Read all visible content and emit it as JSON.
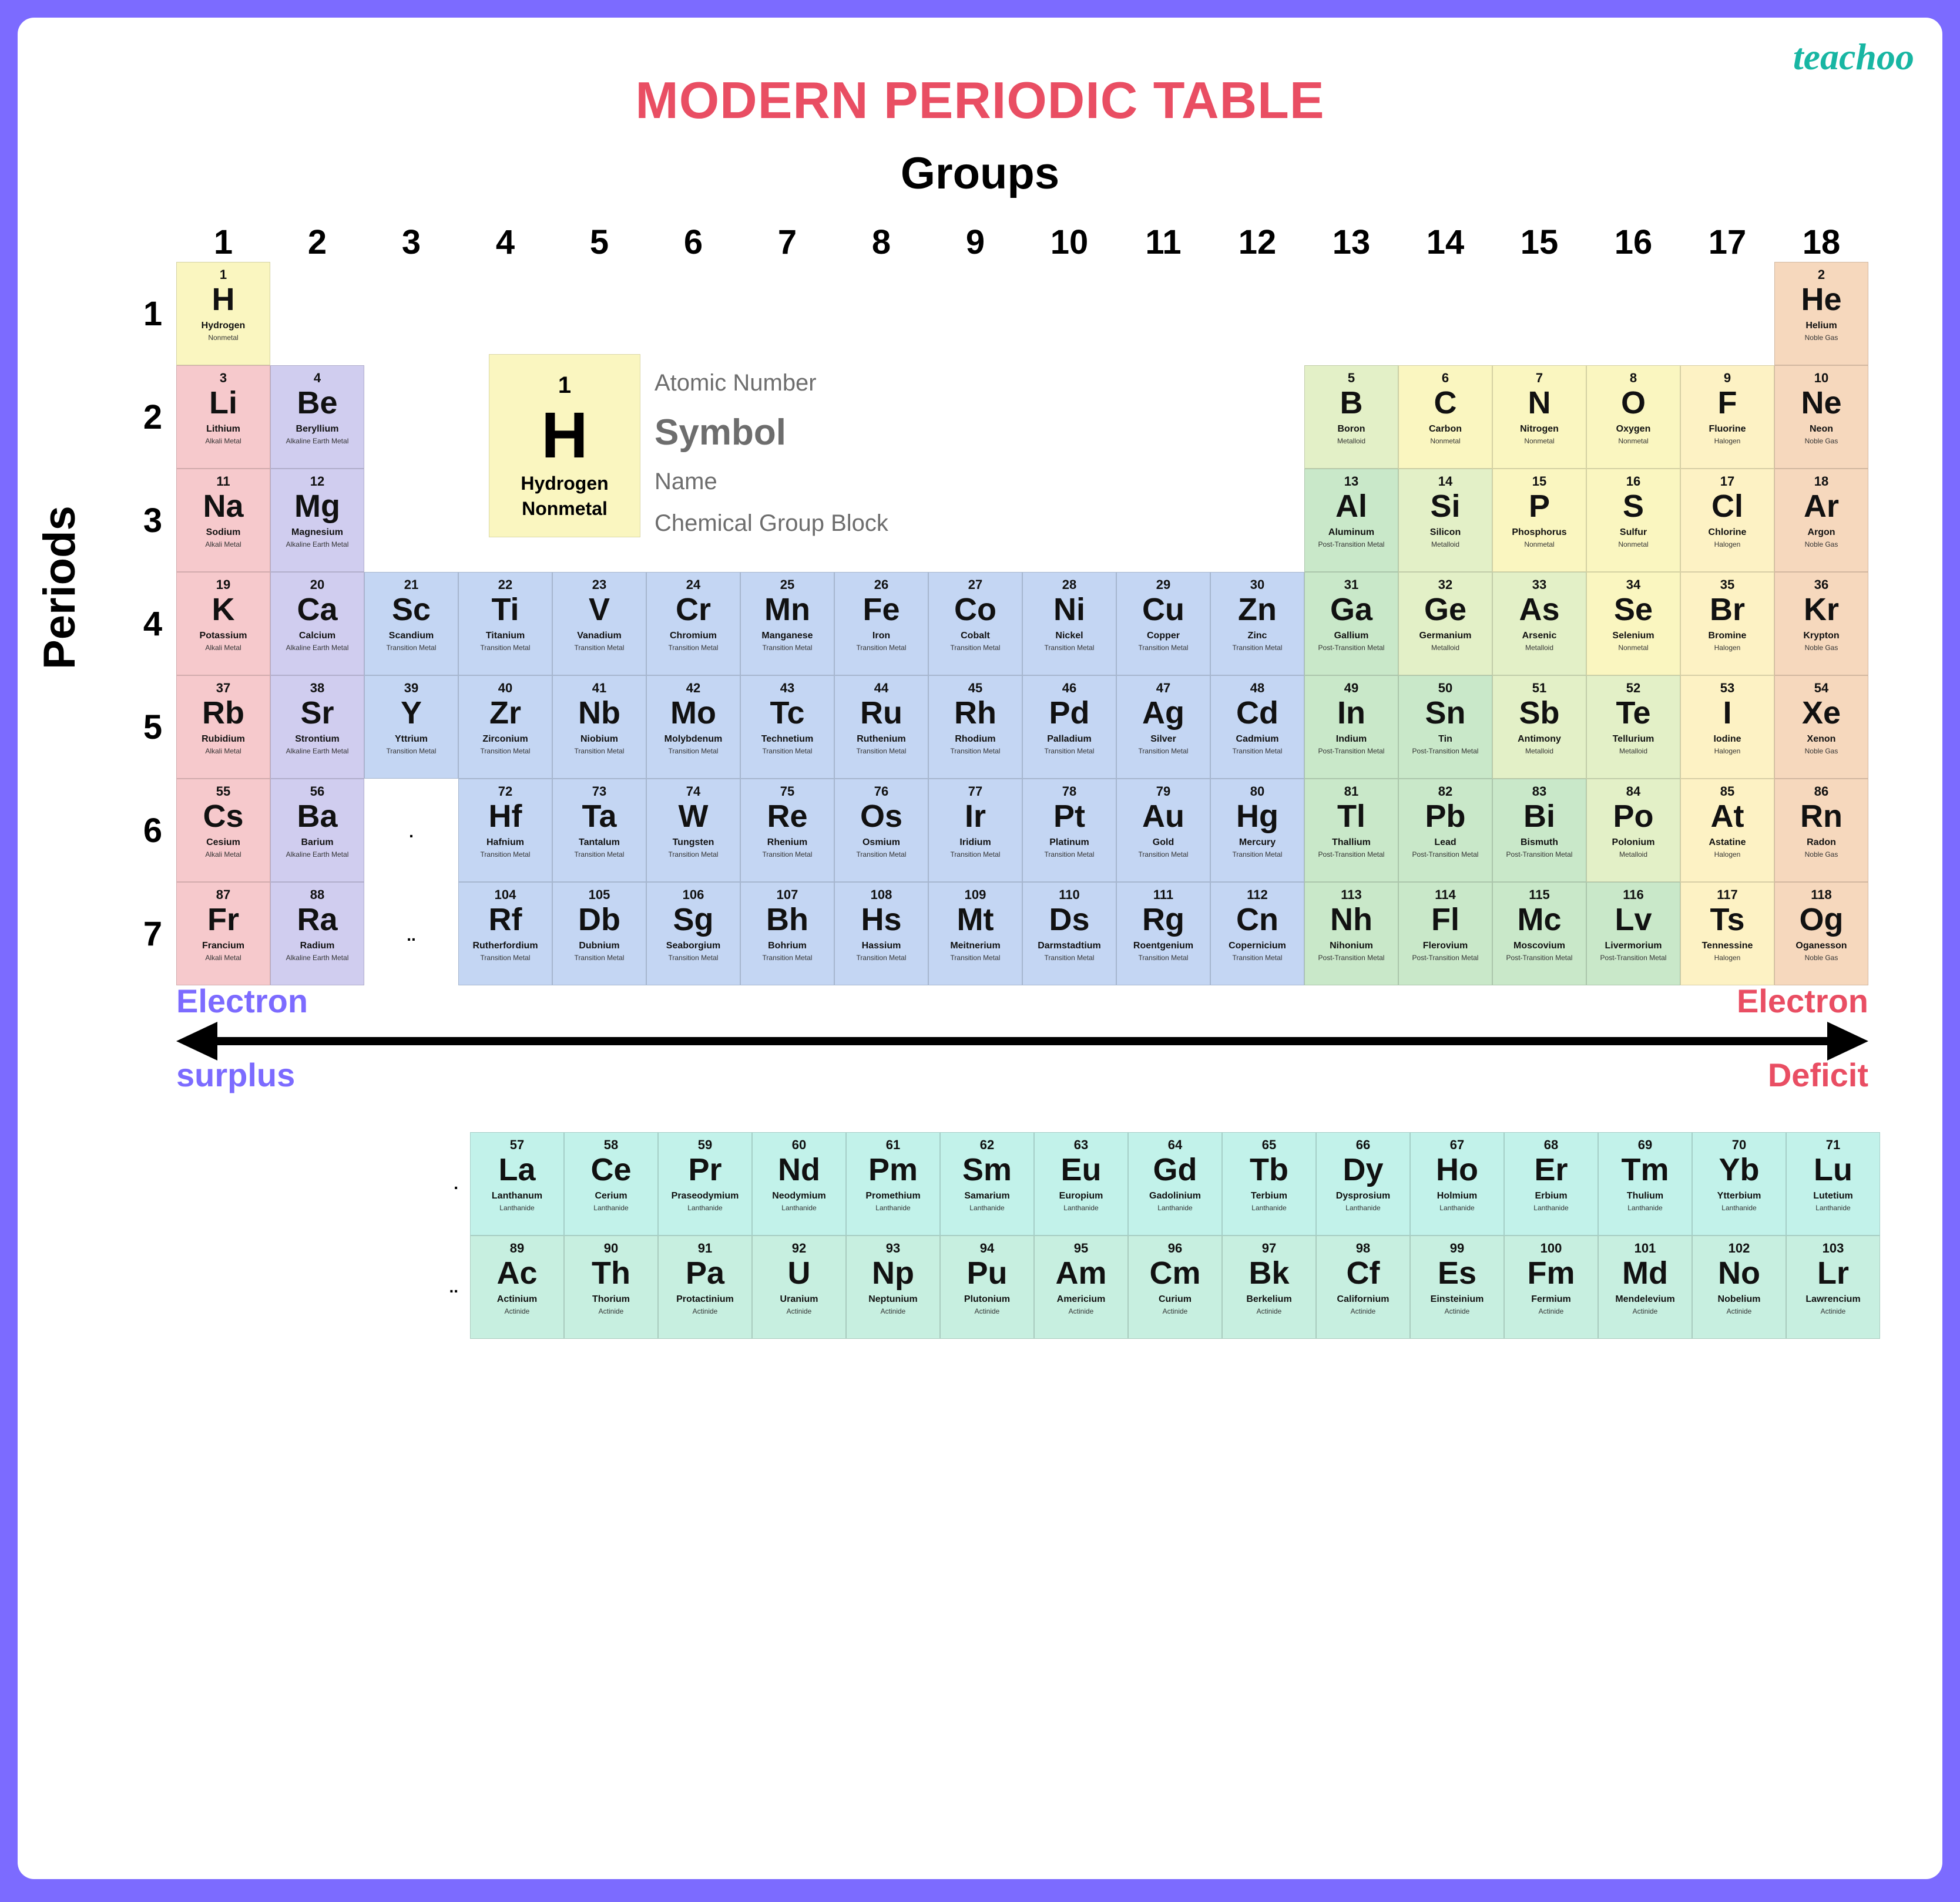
{
  "brand": "teachoo",
  "title": "MODERN PERIODIC TABLE",
  "axis": {
    "groups": "Groups",
    "periods": "Periods"
  },
  "colors": {
    "Nonmetal": "#faf6c0",
    "Alkali Metal": "#f6c9cc",
    "Alkaline Earth Metal": "#d0cdef",
    "Transition Metal": "#c4d6f3",
    "Post-Transition Metal": "#c9e8c9",
    "Metalloid": "#e3f0c7",
    "Halogen": "#fdf2c4",
    "Noble Gas": "#f6d8bd",
    "Lanthanide": "#c2f2ea",
    "Actinide": "#c7efe0"
  },
  "legend": {
    "cell": {
      "num": "1",
      "sym": "H",
      "name": "Hydrogen",
      "group": "Nonmetal",
      "cat": "Nonmetal"
    },
    "labels": {
      "num": "Atomic Number",
      "sym": "Symbol",
      "name": "Name",
      "group": "Chemical Group Block"
    }
  },
  "arrow": {
    "left1": "Electron",
    "left2": "surplus",
    "right1": "Electron",
    "right2": "Deficit",
    "color": "#000000"
  },
  "groups": [
    1,
    2,
    3,
    4,
    5,
    6,
    7,
    8,
    9,
    10,
    11,
    12,
    13,
    14,
    15,
    16,
    17,
    18
  ],
  "periods": [
    1,
    2,
    3,
    4,
    5,
    6,
    7
  ],
  "main": [
    [
      {
        "n": 1,
        "s": "H",
        "nm": "Hydrogen",
        "g": "Nonmetal"
      },
      null,
      null,
      null,
      null,
      null,
      null,
      null,
      null,
      null,
      null,
      null,
      null,
      null,
      null,
      null,
      null,
      {
        "n": 2,
        "s": "He",
        "nm": "Helium",
        "g": "Noble Gas"
      }
    ],
    [
      {
        "n": 3,
        "s": "Li",
        "nm": "Lithium",
        "g": "Alkali Metal"
      },
      {
        "n": 4,
        "s": "Be",
        "nm": "Beryllium",
        "g": "Alkaline Earth Metal"
      },
      null,
      null,
      null,
      null,
      null,
      null,
      null,
      null,
      null,
      null,
      {
        "n": 5,
        "s": "B",
        "nm": "Boron",
        "g": "Metalloid"
      },
      {
        "n": 6,
        "s": "C",
        "nm": "Carbon",
        "g": "Nonmetal"
      },
      {
        "n": 7,
        "s": "N",
        "nm": "Nitrogen",
        "g": "Nonmetal"
      },
      {
        "n": 8,
        "s": "O",
        "nm": "Oxygen",
        "g": "Nonmetal"
      },
      {
        "n": 9,
        "s": "F",
        "nm": "Fluorine",
        "g": "Halogen"
      },
      {
        "n": 10,
        "s": "Ne",
        "nm": "Neon",
        "g": "Noble Gas"
      }
    ],
    [
      {
        "n": 11,
        "s": "Na",
        "nm": "Sodium",
        "g": "Alkali Metal"
      },
      {
        "n": 12,
        "s": "Mg",
        "nm": "Magnesium",
        "g": "Alkaline Earth Metal"
      },
      null,
      null,
      null,
      null,
      null,
      null,
      null,
      null,
      null,
      null,
      {
        "n": 13,
        "s": "Al",
        "nm": "Aluminum",
        "g": "Post-Transition Metal"
      },
      {
        "n": 14,
        "s": "Si",
        "nm": "Silicon",
        "g": "Metalloid"
      },
      {
        "n": 15,
        "s": "P",
        "nm": "Phosphorus",
        "g": "Nonmetal"
      },
      {
        "n": 16,
        "s": "S",
        "nm": "Sulfur",
        "g": "Nonmetal"
      },
      {
        "n": 17,
        "s": "Cl",
        "nm": "Chlorine",
        "g": "Halogen"
      },
      {
        "n": 18,
        "s": "Ar",
        "nm": "Argon",
        "g": "Noble Gas"
      }
    ],
    [
      {
        "n": 19,
        "s": "K",
        "nm": "Potassium",
        "g": "Alkali Metal"
      },
      {
        "n": 20,
        "s": "Ca",
        "nm": "Calcium",
        "g": "Alkaline Earth Metal"
      },
      {
        "n": 21,
        "s": "Sc",
        "nm": "Scandium",
        "g": "Transition Metal"
      },
      {
        "n": 22,
        "s": "Ti",
        "nm": "Titanium",
        "g": "Transition Metal"
      },
      {
        "n": 23,
        "s": "V",
        "nm": "Vanadium",
        "g": "Transition Metal"
      },
      {
        "n": 24,
        "s": "Cr",
        "nm": "Chromium",
        "g": "Transition Metal"
      },
      {
        "n": 25,
        "s": "Mn",
        "nm": "Manganese",
        "g": "Transition Metal"
      },
      {
        "n": 26,
        "s": "Fe",
        "nm": "Iron",
        "g": "Transition Metal"
      },
      {
        "n": 27,
        "s": "Co",
        "nm": "Cobalt",
        "g": "Transition Metal"
      },
      {
        "n": 28,
        "s": "Ni",
        "nm": "Nickel",
        "g": "Transition Metal"
      },
      {
        "n": 29,
        "s": "Cu",
        "nm": "Copper",
        "g": "Transition Metal"
      },
      {
        "n": 30,
        "s": "Zn",
        "nm": "Zinc",
        "g": "Transition Metal"
      },
      {
        "n": 31,
        "s": "Ga",
        "nm": "Gallium",
        "g": "Post-Transition Metal"
      },
      {
        "n": 32,
        "s": "Ge",
        "nm": "Germanium",
        "g": "Metalloid"
      },
      {
        "n": 33,
        "s": "As",
        "nm": "Arsenic",
        "g": "Metalloid"
      },
      {
        "n": 34,
        "s": "Se",
        "nm": "Selenium",
        "g": "Nonmetal"
      },
      {
        "n": 35,
        "s": "Br",
        "nm": "Bromine",
        "g": "Halogen"
      },
      {
        "n": 36,
        "s": "Kr",
        "nm": "Krypton",
        "g": "Noble Gas"
      }
    ],
    [
      {
        "n": 37,
        "s": "Rb",
        "nm": "Rubidium",
        "g": "Alkali Metal"
      },
      {
        "n": 38,
        "s": "Sr",
        "nm": "Strontium",
        "g": "Alkaline Earth Metal"
      },
      {
        "n": 39,
        "s": "Y",
        "nm": "Yttrium",
        "g": "Transition Metal"
      },
      {
        "n": 40,
        "s": "Zr",
        "nm": "Zirconium",
        "g": "Transition Metal"
      },
      {
        "n": 41,
        "s": "Nb",
        "nm": "Niobium",
        "g": "Transition Metal"
      },
      {
        "n": 42,
        "s": "Mo",
        "nm": "Molybdenum",
        "g": "Transition Metal"
      },
      {
        "n": 43,
        "s": "Tc",
        "nm": "Technetium",
        "g": "Transition Metal"
      },
      {
        "n": 44,
        "s": "Ru",
        "nm": "Ruthenium",
        "g": "Transition Metal"
      },
      {
        "n": 45,
        "s": "Rh",
        "nm": "Rhodium",
        "g": "Transition Metal"
      },
      {
        "n": 46,
        "s": "Pd",
        "nm": "Palladium",
        "g": "Transition Metal"
      },
      {
        "n": 47,
        "s": "Ag",
        "nm": "Silver",
        "g": "Transition Metal"
      },
      {
        "n": 48,
        "s": "Cd",
        "nm": "Cadmium",
        "g": "Transition Metal"
      },
      {
        "n": 49,
        "s": "In",
        "nm": "Indium",
        "g": "Post-Transition Metal"
      },
      {
        "n": 50,
        "s": "Sn",
        "nm": "Tin",
        "g": "Post-Transition Metal"
      },
      {
        "n": 51,
        "s": "Sb",
        "nm": "Antimony",
        "g": "Metalloid"
      },
      {
        "n": 52,
        "s": "Te",
        "nm": "Tellurium",
        "g": "Metalloid"
      },
      {
        "n": 53,
        "s": "I",
        "nm": "Iodine",
        "g": "Halogen"
      },
      {
        "n": 54,
        "s": "Xe",
        "nm": "Xenon",
        "g": "Noble Gas"
      }
    ],
    [
      {
        "n": 55,
        "s": "Cs",
        "nm": "Cesium",
        "g": "Alkali Metal"
      },
      {
        "n": 56,
        "s": "Ba",
        "nm": "Barium",
        "g": "Alkaline Earth Metal"
      },
      {
        "dots": "."
      },
      {
        "n": 72,
        "s": "Hf",
        "nm": "Hafnium",
        "g": "Transition Metal"
      },
      {
        "n": 73,
        "s": "Ta",
        "nm": "Tantalum",
        "g": "Transition Metal"
      },
      {
        "n": 74,
        "s": "W",
        "nm": "Tungsten",
        "g": "Transition Metal"
      },
      {
        "n": 75,
        "s": "Re",
        "nm": "Rhenium",
        "g": "Transition Metal"
      },
      {
        "n": 76,
        "s": "Os",
        "nm": "Osmium",
        "g": "Transition Metal"
      },
      {
        "n": 77,
        "s": "Ir",
        "nm": "Iridium",
        "g": "Transition Metal"
      },
      {
        "n": 78,
        "s": "Pt",
        "nm": "Platinum",
        "g": "Transition Metal"
      },
      {
        "n": 79,
        "s": "Au",
        "nm": "Gold",
        "g": "Transition Metal"
      },
      {
        "n": 80,
        "s": "Hg",
        "nm": "Mercury",
        "g": "Transition Metal"
      },
      {
        "n": 81,
        "s": "Tl",
        "nm": "Thallium",
        "g": "Post-Transition Metal"
      },
      {
        "n": 82,
        "s": "Pb",
        "nm": "Lead",
        "g": "Post-Transition Metal"
      },
      {
        "n": 83,
        "s": "Bi",
        "nm": "Bismuth",
        "g": "Post-Transition Metal"
      },
      {
        "n": 84,
        "s": "Po",
        "nm": "Polonium",
        "g": "Metalloid"
      },
      {
        "n": 85,
        "s": "At",
        "nm": "Astatine",
        "g": "Halogen"
      },
      {
        "n": 86,
        "s": "Rn",
        "nm": "Radon",
        "g": "Noble Gas"
      }
    ],
    [
      {
        "n": 87,
        "s": "Fr",
        "nm": "Francium",
        "g": "Alkali Metal"
      },
      {
        "n": 88,
        "s": "Ra",
        "nm": "Radium",
        "g": "Alkaline Earth Metal"
      },
      {
        "dots": ".."
      },
      {
        "n": 104,
        "s": "Rf",
        "nm": "Rutherfordium",
        "g": "Transition Metal"
      },
      {
        "n": 105,
        "s": "Db",
        "nm": "Dubnium",
        "g": "Transition Metal"
      },
      {
        "n": 106,
        "s": "Sg",
        "nm": "Seaborgium",
        "g": "Transition Metal"
      },
      {
        "n": 107,
        "s": "Bh",
        "nm": "Bohrium",
        "g": "Transition Metal"
      },
      {
        "n": 108,
        "s": "Hs",
        "nm": "Hassium",
        "g": "Transition Metal"
      },
      {
        "n": 109,
        "s": "Mt",
        "nm": "Meitnerium",
        "g": "Transition Metal"
      },
      {
        "n": 110,
        "s": "Ds",
        "nm": "Darmstadtium",
        "g": "Transition Metal"
      },
      {
        "n": 111,
        "s": "Rg",
        "nm": "Roentgenium",
        "g": "Transition Metal"
      },
      {
        "n": 112,
        "s": "Cn",
        "nm": "Copernicium",
        "g": "Transition Metal"
      },
      {
        "n": 113,
        "s": "Nh",
        "nm": "Nihonium",
        "g": "Post-Transition Metal"
      },
      {
        "n": 114,
        "s": "Fl",
        "nm": "Flerovium",
        "g": "Post-Transition Metal"
      },
      {
        "n": 115,
        "s": "Mc",
        "nm": "Moscovium",
        "g": "Post-Transition Metal"
      },
      {
        "n": 116,
        "s": "Lv",
        "nm": "Livermorium",
        "g": "Post-Transition Metal"
      },
      {
        "n": 117,
        "s": "Ts",
        "nm": "Tennessine",
        "g": "Halogen"
      },
      {
        "n": 118,
        "s": "Og",
        "nm": "Oganesson",
        "g": "Noble Gas"
      }
    ]
  ],
  "fblock": [
    {
      "marker": ".",
      "cells": [
        {
          "n": 57,
          "s": "La",
          "nm": "Lanthanum",
          "g": "Lanthanide"
        },
        {
          "n": 58,
          "s": "Ce",
          "nm": "Cerium",
          "g": "Lanthanide"
        },
        {
          "n": 59,
          "s": "Pr",
          "nm": "Praseodymium",
          "g": "Lanthanide"
        },
        {
          "n": 60,
          "s": "Nd",
          "nm": "Neodymium",
          "g": "Lanthanide"
        },
        {
          "n": 61,
          "s": "Pm",
          "nm": "Promethium",
          "g": "Lanthanide"
        },
        {
          "n": 62,
          "s": "Sm",
          "nm": "Samarium",
          "g": "Lanthanide"
        },
        {
          "n": 63,
          "s": "Eu",
          "nm": "Europium",
          "g": "Lanthanide"
        },
        {
          "n": 64,
          "s": "Gd",
          "nm": "Gadolinium",
          "g": "Lanthanide"
        },
        {
          "n": 65,
          "s": "Tb",
          "nm": "Terbium",
          "g": "Lanthanide"
        },
        {
          "n": 66,
          "s": "Dy",
          "nm": "Dysprosium",
          "g": "Lanthanide"
        },
        {
          "n": 67,
          "s": "Ho",
          "nm": "Holmium",
          "g": "Lanthanide"
        },
        {
          "n": 68,
          "s": "Er",
          "nm": "Erbium",
          "g": "Lanthanide"
        },
        {
          "n": 69,
          "s": "Tm",
          "nm": "Thulium",
          "g": "Lanthanide"
        },
        {
          "n": 70,
          "s": "Yb",
          "nm": "Ytterbium",
          "g": "Lanthanide"
        },
        {
          "n": 71,
          "s": "Lu",
          "nm": "Lutetium",
          "g": "Lanthanide"
        }
      ]
    },
    {
      "marker": "..",
      "cells": [
        {
          "n": 89,
          "s": "Ac",
          "nm": "Actinium",
          "g": "Actinide"
        },
        {
          "n": 90,
          "s": "Th",
          "nm": "Thorium",
          "g": "Actinide"
        },
        {
          "n": 91,
          "s": "Pa",
          "nm": "Protactinium",
          "g": "Actinide"
        },
        {
          "n": 92,
          "s": "U",
          "nm": "Uranium",
          "g": "Actinide"
        },
        {
          "n": 93,
          "s": "Np",
          "nm": "Neptunium",
          "g": "Actinide"
        },
        {
          "n": 94,
          "s": "Pu",
          "nm": "Plutonium",
          "g": "Actinide"
        },
        {
          "n": 95,
          "s": "Am",
          "nm": "Americium",
          "g": "Actinide"
        },
        {
          "n": 96,
          "s": "Cm",
          "nm": "Curium",
          "g": "Actinide"
        },
        {
          "n": 97,
          "s": "Bk",
          "nm": "Berkelium",
          "g": "Actinide"
        },
        {
          "n": 98,
          "s": "Cf",
          "nm": "Californium",
          "g": "Actinide"
        },
        {
          "n": 99,
          "s": "Es",
          "nm": "Einsteinium",
          "g": "Actinide"
        },
        {
          "n": 100,
          "s": "Fm",
          "nm": "Fermium",
          "g": "Actinide"
        },
        {
          "n": 101,
          "s": "Md",
          "nm": "Mendelevium",
          "g": "Actinide"
        },
        {
          "n": 102,
          "s": "No",
          "nm": "Nobelium",
          "g": "Actinide"
        },
        {
          "n": 103,
          "s": "Lr",
          "nm": "Lawrencium",
          "g": "Actinide"
        }
      ]
    }
  ]
}
